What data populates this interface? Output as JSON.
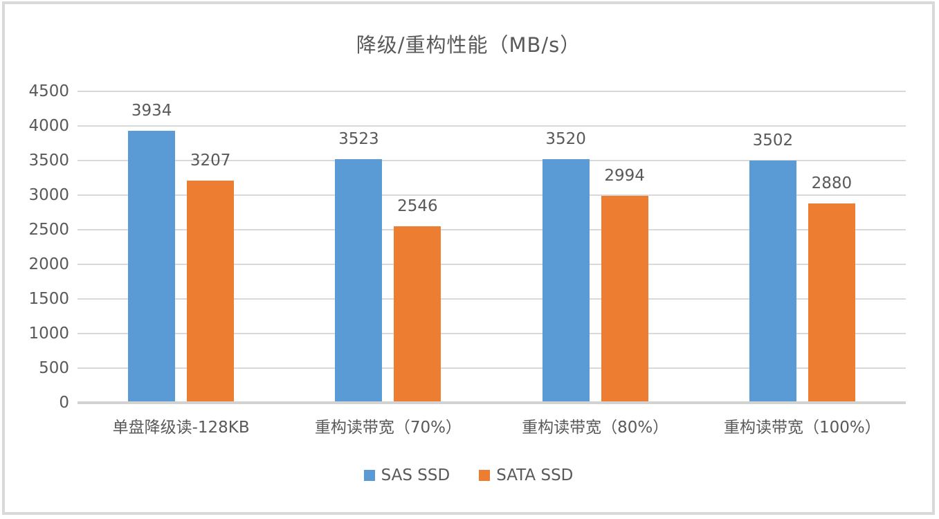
{
  "chart_data": {
    "type": "bar",
    "title": "降级/重构性能（MB/s）",
    "categories": [
      "单盘降级读-128KB",
      "重构读带宽（70%）",
      "重构读带宽（80%）",
      "重构读带宽（100%）"
    ],
    "series": [
      {
        "name": "SAS SSD",
        "color": "#5B9BD5",
        "values": [
          3934,
          3523,
          3520,
          3502
        ]
      },
      {
        "name": "SATA SSD",
        "color": "#ED7D31",
        "values": [
          3207,
          2546,
          2994,
          2880
        ]
      }
    ],
    "ylim": [
      0,
      4500
    ],
    "yticks": [
      0,
      500,
      1000,
      1500,
      2000,
      2500,
      3000,
      3500,
      4000,
      4500
    ],
    "grid": true,
    "data_labels": true,
    "legend_position": "bottom",
    "colors": {
      "text": "#595959",
      "gridline": "#D9D9D9",
      "axis_line": "#D2D2D2",
      "background": "#FFFFFF",
      "frame_border": "#D9D9D9"
    }
  }
}
